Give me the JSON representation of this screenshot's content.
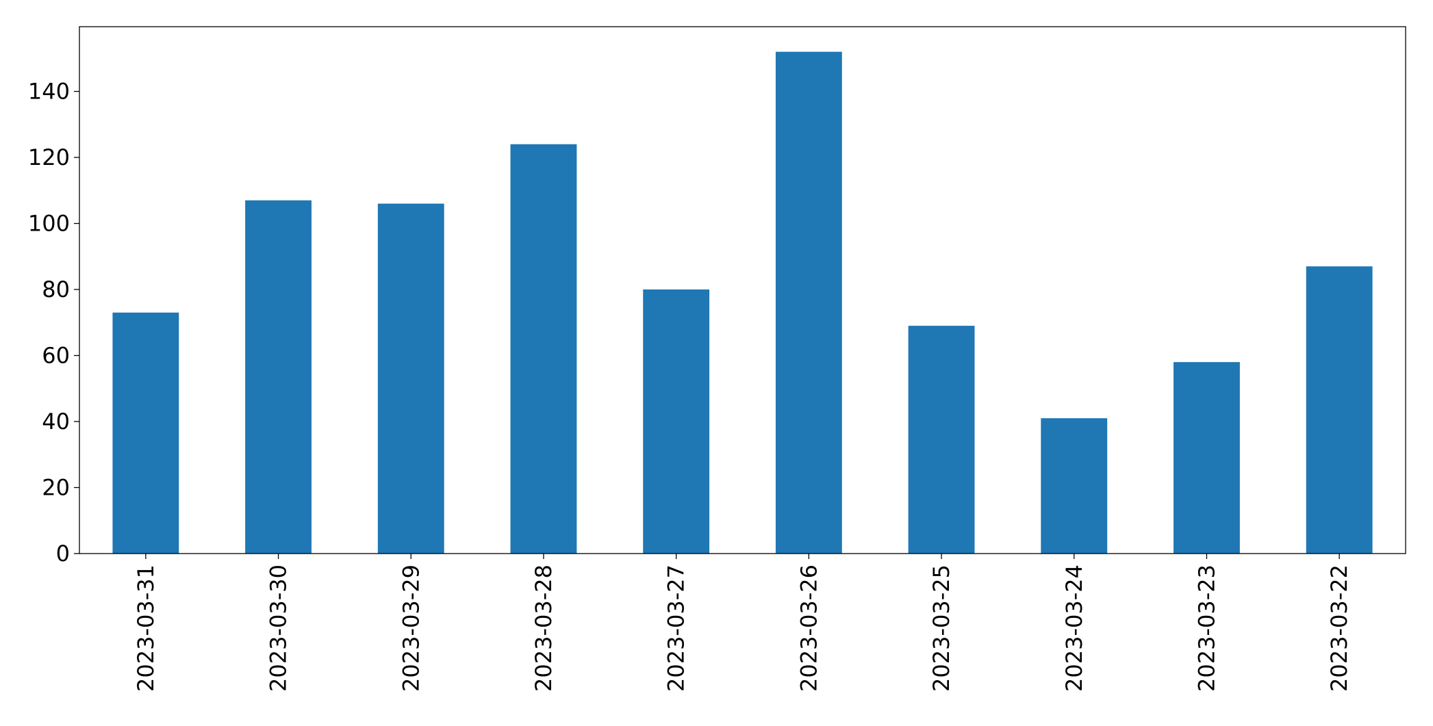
{
  "chart_data": {
    "type": "bar",
    "categories": [
      "2023-03-31",
      "2023-03-30",
      "2023-03-29",
      "2023-03-28",
      "2023-03-27",
      "2023-03-26",
      "2023-03-25",
      "2023-03-24",
      "2023-03-23",
      "2023-03-22"
    ],
    "values": [
      73,
      107,
      106,
      124,
      80,
      152,
      69,
      41,
      58,
      87
    ],
    "color": "#1f77b4",
    "ylim": [
      0,
      159.6
    ],
    "yticks": [
      0,
      20,
      40,
      60,
      80,
      100,
      120,
      140
    ],
    "grid": false
  }
}
